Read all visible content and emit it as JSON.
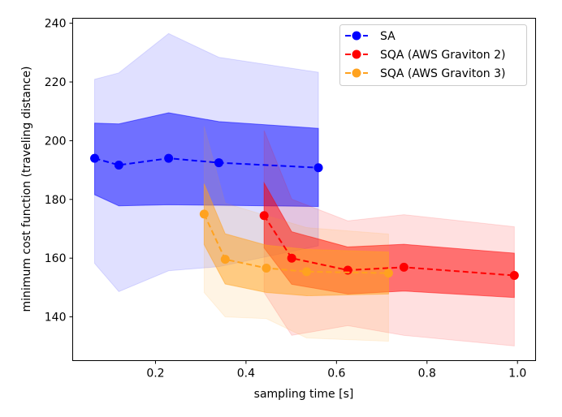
{
  "chart_data": {
    "type": "line",
    "title": "",
    "xlabel": "sampling time [s]",
    "ylabel": "minimum cost function (traveling distance)",
    "xlim": [
      0.017,
      1.04
    ],
    "ylim": [
      125.1,
      241.7
    ],
    "xticks": [
      0.2,
      0.4,
      0.6,
      0.8,
      1.0
    ],
    "xtick_labels": [
      "0.2",
      "0.4",
      "0.6",
      "0.8",
      "1.0"
    ],
    "yticks": [
      140,
      160,
      180,
      200,
      220,
      240
    ],
    "ytick_labels": [
      "140",
      "160",
      "180",
      "200",
      "220",
      "240"
    ],
    "grid": false,
    "legend_position": "top-right",
    "series": [
      {
        "name": "SA",
        "color": "#0000ff",
        "x": [
          0.0655,
          0.119,
          0.229,
          0.34,
          0.56
        ],
        "y": [
          194.0,
          191.7,
          194.0,
          192.5,
          190.8
        ],
        "inner_upper": [
          206.0,
          205.7,
          209.5,
          206.5,
          204.2
        ],
        "inner_lower": [
          181.6,
          177.8,
          178.2,
          178.0,
          177.6
        ],
        "outer_upper": [
          220.9,
          223.1,
          236.5,
          228.4,
          223.3
        ],
        "outer_lower": [
          158.2,
          148.6,
          155.7,
          157.1,
          164.2
        ]
      },
      {
        "name": "SQA (AWS Graviton 2)",
        "color": "#ff0000",
        "x": [
          0.44,
          0.501,
          0.625,
          0.749,
          0.993
        ],
        "y": [
          174.5,
          160.0,
          155.9,
          156.9,
          154.1
        ],
        "inner_upper": [
          185.6,
          169.0,
          163.8,
          164.7,
          161.7
        ],
        "inner_lower": [
          163.5,
          151.1,
          147.8,
          148.8,
          146.6
        ],
        "outer_upper": [
          203.5,
          180.1,
          172.7,
          174.8,
          170.7
        ],
        "outer_lower": [
          148.3,
          133.7,
          137.0,
          133.7,
          130.1
        ]
      },
      {
        "name": "SQA (AWS Graviton 3)",
        "color": "#ffa21f",
        "x": [
          0.3075,
          0.354,
          0.445,
          0.534,
          0.715
        ],
        "y": [
          175.0,
          159.6,
          156.6,
          155.4,
          154.9
        ],
        "inner_upper": [
          185.3,
          168.3,
          164.4,
          163.0,
          162.1
        ],
        "inner_lower": [
          164.6,
          151.2,
          148.3,
          147.2,
          147.8
        ],
        "outer_upper": [
          204.9,
          178.7,
          174.5,
          170.4,
          168.2
        ],
        "outer_lower": [
          148.3,
          140.0,
          139.4,
          132.8,
          131.7
        ]
      }
    ]
  }
}
